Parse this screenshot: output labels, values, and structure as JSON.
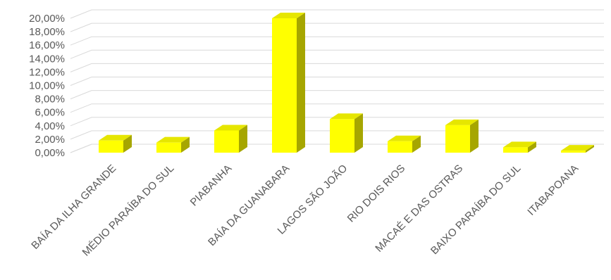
{
  "chart_data": {
    "type": "bar",
    "style": "3d-column",
    "categories": [
      "BAÍA DA ILHA GRANDE",
      "MÉDIO PARAÍBA DO SUL",
      "PIABANHA",
      "BAÍA DA GUANABARA",
      "LAGOS SÃO JOÃO",
      "RIO DOIS RIOS",
      "MACAÉ E DAS OSTRAS",
      "BAIXO PARAÍBA DO SUL",
      "ITABAPOANA"
    ],
    "values": [
      1.8,
      1.5,
      3.3,
      20.0,
      5.0,
      1.7,
      4.1,
      0.8,
      0.3
    ],
    "y_ticks": [
      "0,00%",
      "2,00%",
      "4,00%",
      "6,00%",
      "8,00%",
      "10,00%",
      "12,00%",
      "14,00%",
      "16,00%",
      "18,00%",
      "20,00%"
    ],
    "ylim": [
      0,
      20
    ],
    "title": "",
    "xlabel": "",
    "ylabel": "",
    "grid": true,
    "legend": "none",
    "colors": {
      "bar_front": "#FFFF00",
      "bar_top": "#E6E600",
      "bar_side": "#A6A600",
      "grid": "#D9D9D9",
      "text": "#595959"
    }
  }
}
